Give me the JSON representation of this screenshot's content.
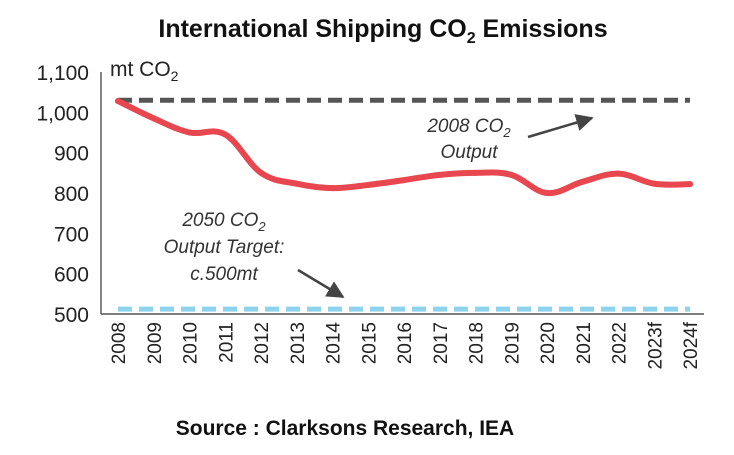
{
  "chart_data": {
    "type": "line",
    "title": "International Shipping CO₂ Emissions",
    "title_main": "International Shipping CO",
    "title_sub": "2",
    "title_tail": " Emissions",
    "ylabel_main": "mt CO",
    "ylabel_sub": "2",
    "xlabel": "",
    "ylim": [
      500,
      1100
    ],
    "yticks": [
      "1,100",
      "1,000",
      "900",
      "800",
      "700",
      "600",
      "500"
    ],
    "ytick_values": [
      1100,
      1000,
      900,
      800,
      700,
      600,
      500
    ],
    "categories": [
      "2008",
      "2009",
      "2010",
      "2011",
      "2012",
      "2013",
      "2014",
      "2015",
      "2016",
      "2017",
      "2018",
      "2019",
      "2020",
      "2021",
      "2022",
      "2023f",
      "2024f"
    ],
    "series": [
      {
        "name": "International Shipping CO2 Emissions",
        "color": "#e8474f",
        "values": [
          1028,
          985,
          950,
          945,
          850,
          823,
          812,
          820,
          832,
          845,
          850,
          845,
          800,
          828,
          848,
          823,
          822
        ]
      }
    ],
    "reference_lines": [
      {
        "name": "2008 CO2 Output",
        "value": 1030,
        "color": "#555555"
      },
      {
        "name": "2050 CO2 Output Target",
        "value": 512,
        "color": "#8dd3ee"
      }
    ],
    "annotations": {
      "output_2008": {
        "line1_main": "2008 CO",
        "line1_sub": "2",
        "line2": "Output"
      },
      "target_2050": {
        "line1_main": "2050 CO",
        "line1_sub": "2",
        "line2": "Output Target:",
        "line3": "c.500mt"
      }
    },
    "source": "Source : Clarksons Research, IEA"
  }
}
